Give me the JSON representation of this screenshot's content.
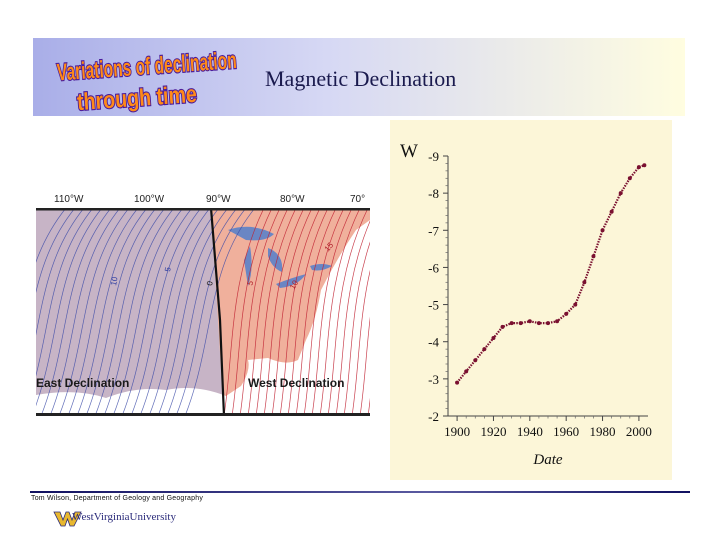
{
  "header": {
    "wordart_line1": "Variations of declination",
    "wordart_line2": "through time",
    "title": "Magnetic Declination"
  },
  "map": {
    "longitudes": [
      "110°W",
      "100°W",
      "90°W",
      "80°W",
      "70°"
    ],
    "east_label": "East Declination",
    "west_label": "West Declination",
    "contour_labels": [
      "10",
      "5",
      "0",
      "5",
      "10",
      "15"
    ]
  },
  "chart_data": {
    "type": "scatter",
    "xlabel": "Date",
    "ylabel_prefix": "W",
    "xlim": [
      1895,
      2005
    ],
    "ylim": [
      -2,
      -9
    ],
    "xticks": [
      "1900",
      "1920",
      "1940",
      "1960",
      "1980",
      "2000"
    ],
    "yticks": [
      "-9",
      "-8",
      "-7",
      "-6",
      "-5",
      "-4",
      "-3",
      "-2"
    ],
    "series": [
      {
        "x": [
          1900,
          1905,
          1910,
          1915,
          1920,
          1925,
          1930,
          1935,
          1940,
          1945,
          1950,
          1955,
          1960,
          1965,
          1970,
          1975,
          1980,
          1985,
          1990,
          1995,
          2000,
          2003
        ],
        "y": [
          -2.9,
          -3.2,
          -3.5,
          -3.8,
          -4.1,
          -4.4,
          -4.5,
          -4.5,
          -4.55,
          -4.5,
          -4.5,
          -4.55,
          -4.75,
          -5.0,
          -5.6,
          -6.3,
          -7.0,
          -7.5,
          -8.0,
          -8.4,
          -8.7,
          -8.75
        ]
      }
    ],
    "color": "#7a1030"
  },
  "footer": {
    "credit": "Tom Wilson, Department of Geology and Geography",
    "university": "WestVirginiaUniversity"
  }
}
